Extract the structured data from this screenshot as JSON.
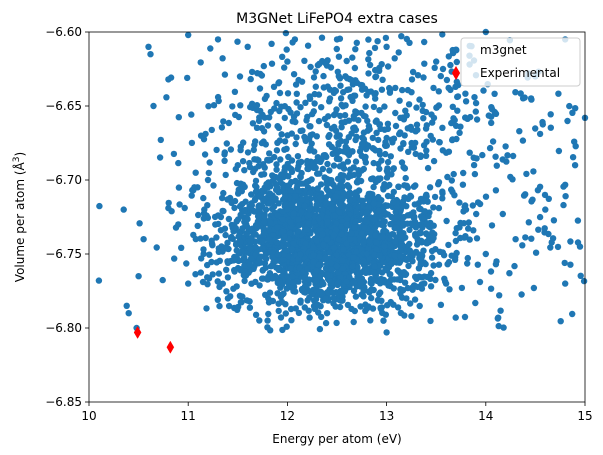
{
  "chart_data": {
    "type": "scatter",
    "title": "M3GNet LiFePO4 extra cases",
    "xlabel": "Energy per atom (eV)",
    "ylabel_main": "Volume per atom (",
    "ylabel_unit": "Å",
    "ylabel_sup": "3",
    "ylabel_close": ")",
    "xlim": [
      10,
      15
    ],
    "ylim": [
      -6.85,
      -6.6
    ],
    "xticks": [
      10,
      11,
      12,
      13,
      14,
      15
    ],
    "yticks": [
      -6.85,
      -6.8,
      -6.75,
      -6.7,
      -6.65,
      -6.6
    ],
    "xtick_labels": [
      "10",
      "11",
      "12",
      "13",
      "14",
      "15"
    ],
    "ytick_labels": [
      "−6.85",
      "−6.80",
      "−6.75",
      "−6.70",
      "−6.65",
      "−6.60"
    ],
    "legend_position": "top-right",
    "grid": false,
    "series": [
      {
        "name": "m3gnet",
        "marker": "circle",
        "color": "#1f77b4",
        "approx_point_count": 3000,
        "distribution": {
          "cluster_center": [
            12.4,
            -6.74
          ],
          "cluster_spread": [
            0.55,
            0.022
          ],
          "x_range": [
            10.1,
            15.0
          ],
          "y_range": [
            -6.805,
            -6.6
          ]
        },
        "sample_points": [
          [
            10.1,
            -6.768
          ],
          [
            10.35,
            -6.72
          ],
          [
            10.38,
            -6.785
          ],
          [
            10.4,
            -6.79
          ],
          [
            10.48,
            -6.8
          ],
          [
            10.5,
            -6.765
          ],
          [
            10.55,
            -6.74
          ],
          [
            10.6,
            -6.61
          ],
          [
            10.62,
            -6.615
          ],
          [
            10.65,
            -6.65
          ],
          [
            10.8,
            -6.632
          ],
          [
            11.0,
            -6.602
          ],
          [
            11.3,
            -6.605
          ],
          [
            11.6,
            -6.61
          ],
          [
            12.0,
            -6.62
          ],
          [
            12.5,
            -6.605
          ],
          [
            13.0,
            -6.61
          ],
          [
            13.5,
            -6.62
          ],
          [
            14.0,
            -6.6
          ],
          [
            14.5,
            -6.63
          ],
          [
            14.8,
            -6.605
          ],
          [
            15.0,
            -6.658
          ],
          [
            14.9,
            -6.69
          ],
          [
            14.95,
            -6.745
          ],
          [
            14.8,
            -6.77
          ],
          [
            14.6,
            -6.72
          ],
          [
            14.3,
            -6.74
          ],
          [
            14.0,
            -6.75
          ],
          [
            13.6,
            -6.77
          ],
          [
            13.2,
            -6.78
          ],
          [
            13.0,
            -6.803
          ],
          [
            12.4,
            -6.79
          ],
          [
            11.8,
            -6.795
          ],
          [
            11.4,
            -6.78
          ],
          [
            11.0,
            -6.77
          ],
          [
            10.9,
            -6.73
          ],
          [
            11.2,
            -6.7
          ],
          [
            11.5,
            -6.69
          ],
          [
            12.0,
            -6.72
          ],
          [
            12.4,
            -6.74
          ],
          [
            12.6,
            -6.73
          ],
          [
            12.2,
            -6.76
          ],
          [
            12.8,
            -6.75
          ],
          [
            13.4,
            -6.71
          ],
          [
            13.8,
            -6.72
          ]
        ]
      },
      {
        "name": "Experimental",
        "marker": "thin_diamond",
        "color": "#ff0000",
        "points": [
          [
            10.49,
            -6.803
          ],
          [
            10.82,
            -6.813
          ],
          [
            13.7,
            -6.628
          ]
        ]
      }
    ]
  }
}
